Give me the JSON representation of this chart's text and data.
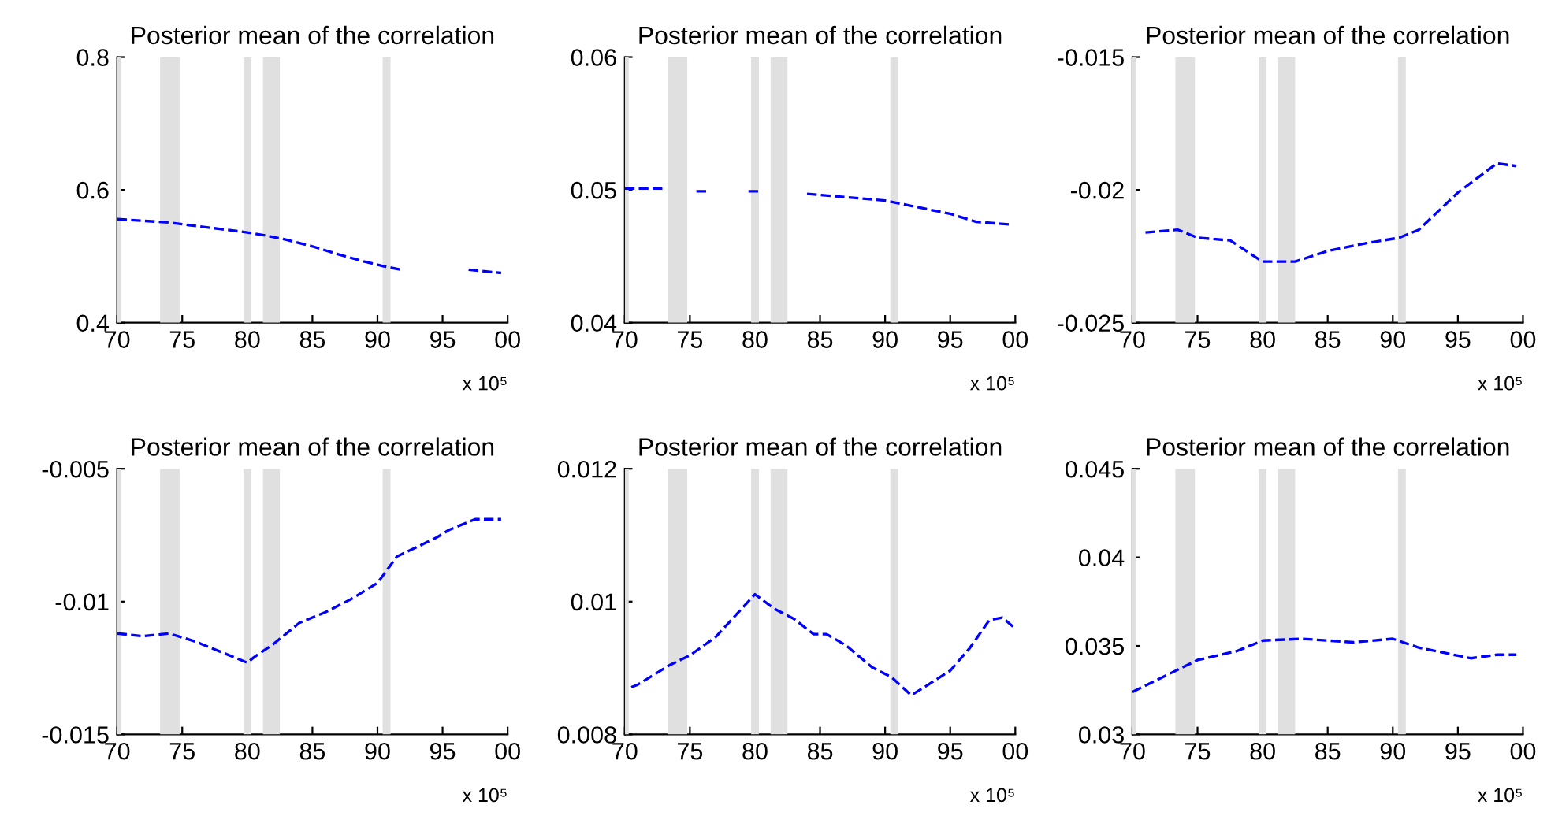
{
  "chart_data": [
    {
      "type": "line",
      "title": "Posterior mean of the correlation",
      "annotations": [
        "x 10⁵"
      ],
      "line_style": "dashed",
      "marker": "none",
      "grid": false,
      "legend": false,
      "xlim": [
        1970,
        2000
      ],
      "xticks": [
        {
          "value": 1970,
          "label": "70"
        },
        {
          "value": 1975,
          "label": "75"
        },
        {
          "value": 1980,
          "label": "80"
        },
        {
          "value": 1985,
          "label": "85"
        },
        {
          "value": 1990,
          "label": "90"
        },
        {
          "value": 1995,
          "label": "95"
        },
        {
          "value": 2000,
          "label": "00"
        }
      ],
      "ylim": [
        0.4,
        0.8
      ],
      "yticks": [
        0.4,
        0.6,
        0.8
      ],
      "bands": [
        {
          "axis": "x",
          "from": 1970,
          "to": 1970.3,
          "color": "#e0e0e0"
        },
        {
          "axis": "x",
          "from": 1973.3,
          "to": 1974.8,
          "color": "#e0e0e0"
        },
        {
          "axis": "x",
          "from": 1979.7,
          "to": 1980.3,
          "color": "#e0e0e0"
        },
        {
          "axis": "x",
          "from": 1981.2,
          "to": 1982.5,
          "color": "#e0e0e0"
        },
        {
          "axis": "x",
          "from": 1990.4,
          "to": 1991,
          "color": "#e0e0e0"
        }
      ],
      "series": [
        {
          "color": "#0000ff",
          "x": [
            1970,
            1974,
            1975.5,
            1978,
            1980,
            1981.5,
            1983,
            1985,
            1987,
            1989,
            1990.5,
            1992,
            1994,
            1997,
            1999.5
          ],
          "values": [
            0.556,
            0.551,
            0.547,
            0.541,
            0.536,
            0.531,
            0.525,
            0.515,
            0.503,
            0.492,
            0.485,
            0.479,
            null,
            0.48,
            0.475
          ]
        }
      ]
    },
    {
      "type": "line",
      "title": "Posterior mean of the correlation",
      "annotations": [
        "x 10⁵"
      ],
      "line_style": "dashed",
      "marker": "none",
      "grid": false,
      "legend": false,
      "xlim": [
        1970,
        2000
      ],
      "xticks": [
        {
          "value": 1970,
          "label": "70"
        },
        {
          "value": 1975,
          "label": "75"
        },
        {
          "value": 1980,
          "label": "80"
        },
        {
          "value": 1985,
          "label": "85"
        },
        {
          "value": 1990,
          "label": "90"
        },
        {
          "value": 1995,
          "label": "95"
        },
        {
          "value": 2000,
          "label": "00"
        }
      ],
      "ylim": [
        0.04,
        0.06
      ],
      "yticks": [
        0.04,
        0.05,
        0.06
      ],
      "bands": [
        {
          "axis": "x",
          "from": 1970,
          "to": 1970.3,
          "color": "#e0e0e0"
        },
        {
          "axis": "x",
          "from": 1973.3,
          "to": 1974.8,
          "color": "#e0e0e0"
        },
        {
          "axis": "x",
          "from": 1979.7,
          "to": 1980.3,
          "color": "#e0e0e0"
        },
        {
          "axis": "x",
          "from": 1981.2,
          "to": 1982.5,
          "color": "#e0e0e0"
        },
        {
          "axis": "x",
          "from": 1990.4,
          "to": 1991,
          "color": "#e0e0e0"
        }
      ],
      "series": [
        {
          "color": "#0000ff",
          "x": [
            1970,
            1973,
            1974,
            1975.5,
            1976.5,
            1978,
            1979.5,
            1980.5,
            1982,
            1984,
            1986.5,
            1990,
            1992,
            1995,
            1997,
            1999.5
          ],
          "values": [
            0.0501,
            0.0501,
            null,
            0.0499,
            0.0499,
            null,
            0.0499,
            0.0499,
            null,
            0.0497,
            0.0495,
            0.0492,
            0.0488,
            0.0482,
            0.0476,
            0.0474
          ]
        }
      ]
    },
    {
      "type": "line",
      "title": "Posterior mean of the correlation",
      "annotations": [
        "x 10⁵"
      ],
      "line_style": "dashed",
      "marker": "none",
      "grid": false,
      "legend": false,
      "xlim": [
        1970,
        2000
      ],
      "xticks": [
        {
          "value": 1970,
          "label": "70"
        },
        {
          "value": 1975,
          "label": "75"
        },
        {
          "value": 1980,
          "label": "80"
        },
        {
          "value": 1985,
          "label": "85"
        },
        {
          "value": 1990,
          "label": "90"
        },
        {
          "value": 1995,
          "label": "95"
        },
        {
          "value": 2000,
          "label": "00"
        }
      ],
      "ylim": [
        -0.025,
        -0.015
      ],
      "yticks": [
        -0.025,
        -0.02,
        -0.015
      ],
      "bands": [
        {
          "axis": "x",
          "from": 1970,
          "to": 1970.3,
          "color": "#e0e0e0"
        },
        {
          "axis": "x",
          "from": 1973.3,
          "to": 1974.8,
          "color": "#e0e0e0"
        },
        {
          "axis": "x",
          "from": 1979.7,
          "to": 1980.3,
          "color": "#e0e0e0"
        },
        {
          "axis": "x",
          "from": 1981.2,
          "to": 1982.5,
          "color": "#e0e0e0"
        },
        {
          "axis": "x",
          "from": 1990.4,
          "to": 1991,
          "color": "#e0e0e0"
        }
      ],
      "series": [
        {
          "color": "#0000ff",
          "x": [
            1971,
            1973.5,
            1975,
            1977.5,
            1980,
            1982.5,
            1985,
            1988,
            1990.5,
            1992,
            1995,
            1998,
            1999.5
          ],
          "values": [
            -0.0216,
            -0.0215,
            -0.0218,
            -0.0219,
            -0.0227,
            -0.0227,
            -0.0223,
            -0.022,
            -0.0218,
            -0.0215,
            -0.0201,
            -0.019,
            -0.0191
          ]
        }
      ]
    },
    {
      "type": "line",
      "title": "Posterior mean of the correlation",
      "annotations": [
        "x 10⁵"
      ],
      "line_style": "dashed",
      "marker": "none",
      "grid": false,
      "legend": false,
      "xlim": [
        1970,
        2000
      ],
      "xticks": [
        {
          "value": 1970,
          "label": "70"
        },
        {
          "value": 1975,
          "label": "75"
        },
        {
          "value": 1980,
          "label": "80"
        },
        {
          "value": 1985,
          "label": "85"
        },
        {
          "value": 1990,
          "label": "90"
        },
        {
          "value": 1995,
          "label": "95"
        },
        {
          "value": 2000,
          "label": "00"
        }
      ],
      "ylim": [
        -0.015,
        -0.005
      ],
      "yticks": [
        -0.015,
        -0.01,
        -0.005
      ],
      "bands": [
        {
          "axis": "x",
          "from": 1970,
          "to": 1970.3,
          "color": "#e0e0e0"
        },
        {
          "axis": "x",
          "from": 1973.3,
          "to": 1974.8,
          "color": "#e0e0e0"
        },
        {
          "axis": "x",
          "from": 1979.7,
          "to": 1980.3,
          "color": "#e0e0e0"
        },
        {
          "axis": "x",
          "from": 1981.2,
          "to": 1982.5,
          "color": "#e0e0e0"
        },
        {
          "axis": "x",
          "from": 1990.4,
          "to": 1991,
          "color": "#e0e0e0"
        }
      ],
      "series": [
        {
          "color": "#0000ff",
          "x": [
            1970,
            1972,
            1974,
            1976,
            1978,
            1980,
            1980.5,
            1982,
            1984,
            1986,
            1988,
            1990,
            1991.5,
            1994.5,
            1995.5,
            1997.5,
            1999.5
          ],
          "values": [
            -0.0112,
            -0.0113,
            -0.0112,
            -0.0115,
            -0.0119,
            -0.0123,
            -0.0121,
            -0.0116,
            -0.0108,
            -0.0104,
            -0.0099,
            -0.0093,
            -0.0083,
            -0.0076,
            -0.0073,
            -0.0069,
            -0.0069
          ]
        }
      ]
    },
    {
      "type": "line",
      "title": "Posterior mean of the correlation",
      "annotations": [
        "x 10⁵"
      ],
      "line_style": "dashed",
      "marker": "none",
      "grid": false,
      "legend": false,
      "xlim": [
        1970,
        2000
      ],
      "xticks": [
        {
          "value": 1970,
          "label": "70"
        },
        {
          "value": 1975,
          "label": "75"
        },
        {
          "value": 1980,
          "label": "80"
        },
        {
          "value": 1985,
          "label": "85"
        },
        {
          "value": 1990,
          "label": "90"
        },
        {
          "value": 1995,
          "label": "95"
        },
        {
          "value": 2000,
          "label": "00"
        }
      ],
      "ylim": [
        0.008,
        0.012
      ],
      "yticks": [
        0.008,
        0.01,
        0.012
      ],
      "bands": [
        {
          "axis": "x",
          "from": 1970,
          "to": 1970.3,
          "color": "#e0e0e0"
        },
        {
          "axis": "x",
          "from": 1973.3,
          "to": 1974.8,
          "color": "#e0e0e0"
        },
        {
          "axis": "x",
          "from": 1979.7,
          "to": 1980.3,
          "color": "#e0e0e0"
        },
        {
          "axis": "x",
          "from": 1981.2,
          "to": 1982.5,
          "color": "#e0e0e0"
        },
        {
          "axis": "x",
          "from": 1990.4,
          "to": 1991,
          "color": "#e0e0e0"
        }
      ],
      "series": [
        {
          "color": "#0000ff",
          "x": [
            1970.5,
            1971,
            1973.5,
            1975,
            1977,
            1980,
            1981.5,
            1983,
            1984.5,
            1985.5,
            1987,
            1989,
            1990.5,
            1992,
            1993,
            1995,
            1996.5,
            1998,
            1999,
            1999.9
          ],
          "values": [
            0.00871,
            0.00875,
            0.00905,
            0.00919,
            0.00947,
            0.01011,
            0.00989,
            0.00974,
            0.00951,
            0.00951,
            0.00934,
            0.00901,
            0.00886,
            0.00859,
            0.00871,
            0.00896,
            0.0093,
            0.00972,
            0.00976,
            0.00961
          ]
        }
      ]
    },
    {
      "type": "line",
      "title": "Posterior mean of the correlation",
      "annotations": [
        "x 10⁵"
      ],
      "line_style": "dashed",
      "marker": "none",
      "grid": false,
      "legend": false,
      "xlim": [
        1970,
        2000
      ],
      "xticks": [
        {
          "value": 1970,
          "label": "70"
        },
        {
          "value": 1975,
          "label": "75"
        },
        {
          "value": 1980,
          "label": "80"
        },
        {
          "value": 1985,
          "label": "85"
        },
        {
          "value": 1990,
          "label": "90"
        },
        {
          "value": 1995,
          "label": "95"
        },
        {
          "value": 2000,
          "label": "00"
        }
      ],
      "ylim": [
        0.03,
        0.045
      ],
      "yticks": [
        0.03,
        0.035,
        0.04,
        0.045
      ],
      "bands": [
        {
          "axis": "x",
          "from": 1970,
          "to": 1970.3,
          "color": "#e0e0e0"
        },
        {
          "axis": "x",
          "from": 1973.3,
          "to": 1974.8,
          "color": "#e0e0e0"
        },
        {
          "axis": "x",
          "from": 1979.7,
          "to": 1980.3,
          "color": "#e0e0e0"
        },
        {
          "axis": "x",
          "from": 1981.2,
          "to": 1982.5,
          "color": "#e0e0e0"
        },
        {
          "axis": "x",
          "from": 1990.4,
          "to": 1991,
          "color": "#e0e0e0"
        }
      ],
      "series": [
        {
          "color": "#0000ff",
          "x": [
            1970,
            1975,
            1978,
            1980,
            1983,
            1987,
            1990,
            1992,
            1994,
            1996,
            1998,
            1999.5
          ],
          "values": [
            0.0324,
            0.0342,
            0.0347,
            0.0353,
            0.0354,
            0.0352,
            0.0354,
            0.0349,
            0.0346,
            0.0343,
            0.0345,
            0.0345
          ]
        }
      ]
    }
  ]
}
